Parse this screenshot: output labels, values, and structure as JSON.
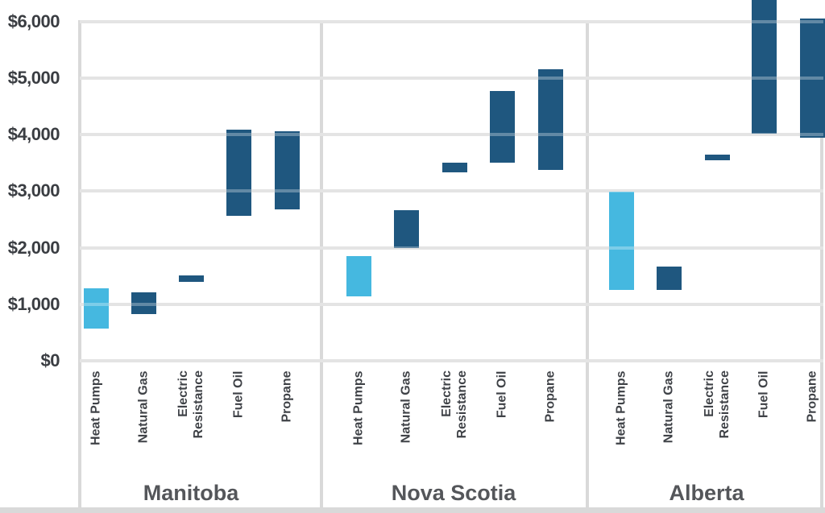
{
  "chart_data": {
    "type": "bar",
    "subtype": "floating-range-bars",
    "title": "",
    "xlabel": "",
    "ylabel": "",
    "ylim": [
      0,
      6400
    ],
    "grid": true,
    "legend_position": "none",
    "yticks": [
      {
        "value": 0,
        "label": "$0"
      },
      {
        "value": 1000,
        "label": "$1,000"
      },
      {
        "value": 2000,
        "label": "$2,000"
      },
      {
        "value": 3000,
        "label": "$3,000"
      },
      {
        "value": 4000,
        "label": "$4,000"
      },
      {
        "value": 5000,
        "label": "$5,000"
      },
      {
        "value": 6000,
        "label": "$6,000"
      }
    ],
    "colors": {
      "heat_pump_bar": "#45B8E0",
      "other_bar": "#1F577F",
      "gridline": "#D9D9D9",
      "axis_tick_text": "#3A3D42",
      "category_text": "#3F4247",
      "group_text": "#54565A",
      "background": "#FFFFFF"
    },
    "groups": [
      {
        "label": "Manitoba",
        "bars": [
          {
            "label": "Heat Pumps",
            "label_lines": [
              "Heat Pumps"
            ],
            "low": 570,
            "high": 1280,
            "highlight": true,
            "clipped_top": false
          },
          {
            "label": "Natural Gas",
            "label_lines": [
              "Natural Gas"
            ],
            "low": 830,
            "high": 1210,
            "highlight": false,
            "clipped_top": false
          },
          {
            "label": "Electric Resistance",
            "label_lines": [
              "Electric",
              "Resistance"
            ],
            "low": 1390,
            "high": 1510,
            "highlight": false,
            "clipped_top": false
          },
          {
            "label": "Fuel Oil",
            "label_lines": [
              "Fuel Oil"
            ],
            "low": 2560,
            "high": 4090,
            "highlight": false,
            "clipped_top": false
          },
          {
            "label": "Propane",
            "label_lines": [
              "Propane"
            ],
            "low": 2680,
            "high": 4060,
            "highlight": false,
            "clipped_top": false
          }
        ]
      },
      {
        "label": "Nova Scotia",
        "bars": [
          {
            "label": "Heat Pumps",
            "label_lines": [
              "Heat Pumps"
            ],
            "low": 1140,
            "high": 1850,
            "highlight": true,
            "clipped_top": false
          },
          {
            "label": "Natural Gas",
            "label_lines": [
              "Natural Gas"
            ],
            "low": 2000,
            "high": 2670,
            "highlight": false,
            "clipped_top": false
          },
          {
            "label": "Electric Resistance",
            "label_lines": [
              "Electric",
              "Resistance"
            ],
            "low": 3330,
            "high": 3510,
            "highlight": false,
            "clipped_top": false
          },
          {
            "label": "Fuel Oil",
            "label_lines": [
              "Fuel Oil"
            ],
            "low": 3510,
            "high": 4770,
            "highlight": false,
            "clipped_top": false
          },
          {
            "label": "Propane",
            "label_lines": [
              "Propane"
            ],
            "low": 3370,
            "high": 5150,
            "highlight": false,
            "clipped_top": false
          }
        ]
      },
      {
        "label": "Alberta",
        "bars": [
          {
            "label": "Heat Pumps",
            "label_lines": [
              "Heat Pumps"
            ],
            "low": 1250,
            "high": 2990,
            "highlight": true,
            "clipped_top": false
          },
          {
            "label": "Natural Gas",
            "label_lines": [
              "Natural Gas"
            ],
            "low": 1250,
            "high": 1660,
            "highlight": false,
            "clipped_top": false
          },
          {
            "label": "Electric Resistance",
            "label_lines": [
              "Electric",
              "Resistance"
            ],
            "low": 3550,
            "high": 3650,
            "highlight": false,
            "clipped_top": false
          },
          {
            "label": "Fuel Oil",
            "label_lines": [
              "Fuel Oil"
            ],
            "low": 4020,
            "high": 6500,
            "highlight": false,
            "clipped_top": true
          },
          {
            "label": "Propane",
            "label_lines": [
              "Propane"
            ],
            "low": 3950,
            "high": 6050,
            "highlight": false,
            "clipped_top": false
          }
        ]
      }
    ]
  }
}
